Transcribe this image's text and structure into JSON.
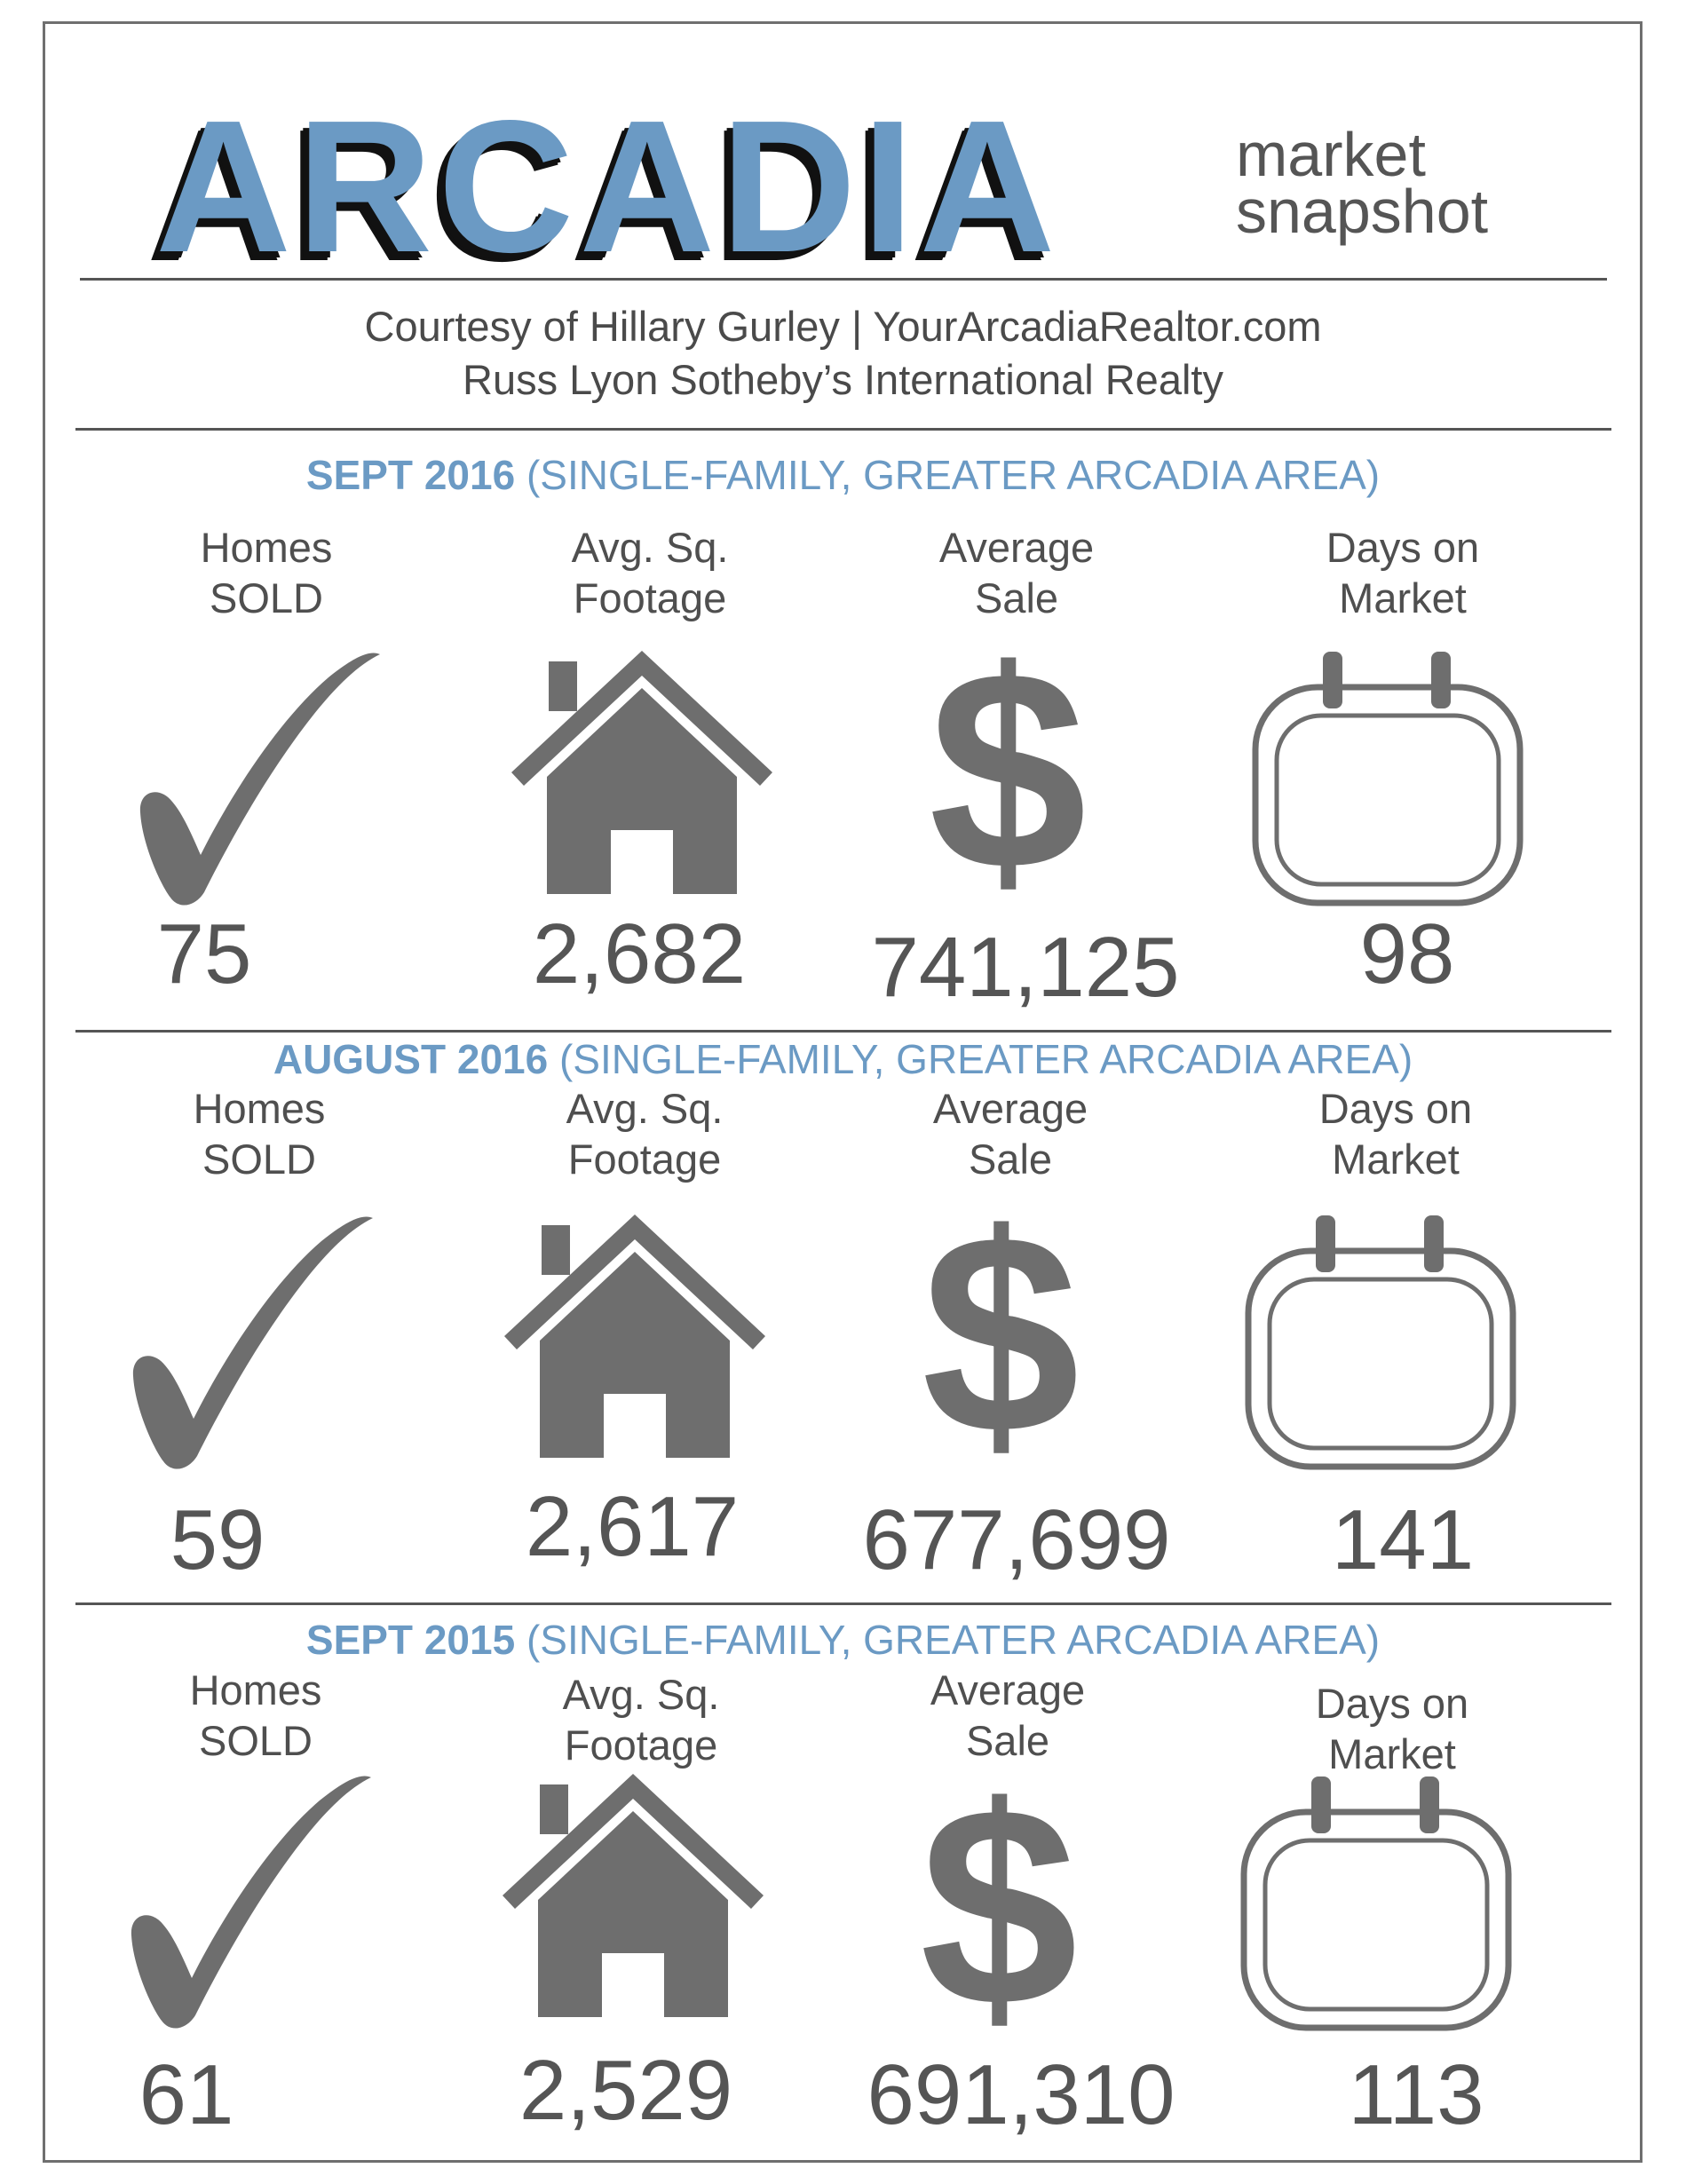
{
  "header": {
    "title": "ARCADIA",
    "subtitle_line1": "market",
    "subtitle_line2": "snapshot",
    "courtesy_line1": "Courtesy of Hillary Gurley | YourArcadiaRealtor.com",
    "courtesy_line2": "Russ Lyon Sotheby’s International Realty"
  },
  "labels": {
    "homes_1": "Homes",
    "homes_2": "SOLD",
    "sqft_1": "Avg. Sq.",
    "sqft_2": "Footage",
    "sale_1": "Average",
    "sale_2": "Sale",
    "days_1": "Days on",
    "days_2": "Market"
  },
  "sections": [
    {
      "period": "SEPT 2016",
      "scope": "(SINGLE-FAMILY, GREATER ARCADIA AREA)",
      "homes_sold": "75",
      "avg_sq_footage": "2,682",
      "average_sale": "741,125",
      "days_on_market": "98"
    },
    {
      "period": "AUGUST 2016",
      "scope": "(SINGLE-FAMILY, GREATER ARCADIA AREA)",
      "homes_sold": "59",
      "avg_sq_footage": "2,617",
      "average_sale": "677,699",
      "days_on_market": "141"
    },
    {
      "period": "SEPT 2015",
      "scope": "(SINGLE-FAMILY, GREATER ARCADIA AREA)",
      "homes_sold": "61",
      "avg_sq_footage": "2,529",
      "average_sale": "691,310",
      "days_on_market": "113"
    }
  ],
  "colors": {
    "accent_blue": "#6b9ac4",
    "icon_gray": "#6e6e6e",
    "text_gray": "#4a4a4a"
  },
  "icons": [
    "check-icon",
    "house-icon",
    "dollar-icon",
    "calendar-icon"
  ]
}
